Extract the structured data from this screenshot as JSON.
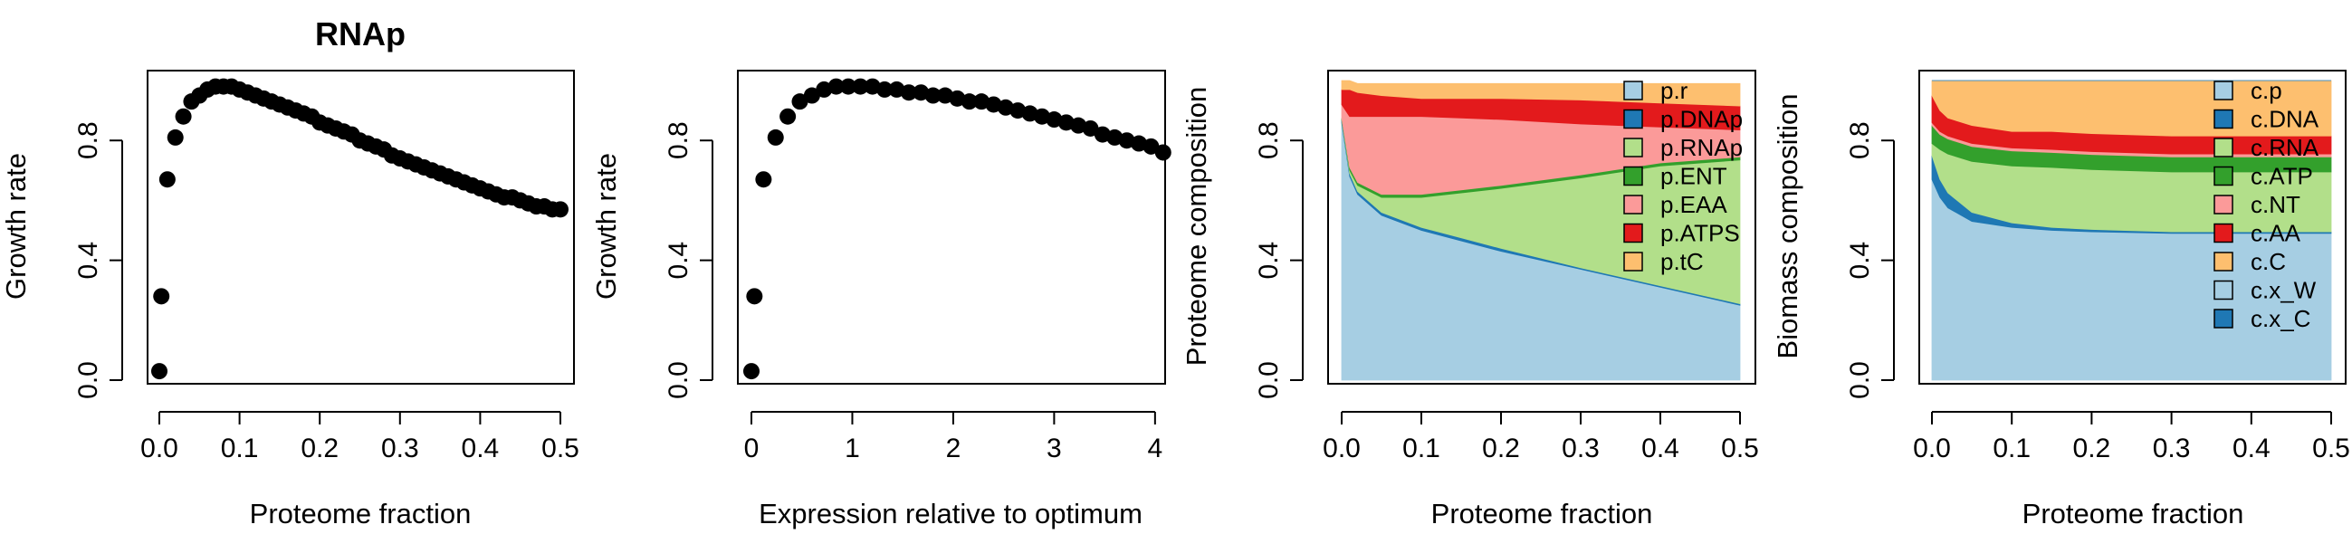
{
  "chart_data": [
    {
      "type": "scatter",
      "title": "RNAp",
      "xlabel": "Proteome fraction",
      "ylabel": "Growth rate",
      "xlim": [
        0,
        0.5
      ],
      "ylim": [
        0,
        1
      ],
      "xticks": [
        0,
        0.1,
        0.2,
        0.3,
        0.4,
        0.5
      ],
      "xtick_labels": [
        "0.0",
        "0.1",
        "0.2",
        "0.3",
        "0.4",
        "0.5"
      ],
      "yticks": [
        0,
        0.4,
        0.8
      ],
      "ytick_labels": [
        "0.0",
        "0.4",
        "0.8"
      ],
      "x": [
        0.0,
        0.0025,
        0.01,
        0.02,
        0.03,
        0.04,
        0.05,
        0.06,
        0.07,
        0.08,
        0.09,
        0.1,
        0.11,
        0.12,
        0.13,
        0.14,
        0.15,
        0.16,
        0.17,
        0.18,
        0.19,
        0.2,
        0.21,
        0.22,
        0.23,
        0.24,
        0.25,
        0.26,
        0.27,
        0.28,
        0.29,
        0.3,
        0.31,
        0.32,
        0.33,
        0.34,
        0.35,
        0.36,
        0.37,
        0.38,
        0.39,
        0.4,
        0.41,
        0.42,
        0.43,
        0.44,
        0.45,
        0.46,
        0.47,
        0.48,
        0.49,
        0.5
      ],
      "y": [
        0.03,
        0.28,
        0.67,
        0.81,
        0.88,
        0.93,
        0.95,
        0.97,
        0.98,
        0.98,
        0.98,
        0.97,
        0.96,
        0.95,
        0.94,
        0.93,
        0.92,
        0.91,
        0.9,
        0.89,
        0.88,
        0.86,
        0.85,
        0.84,
        0.83,
        0.82,
        0.8,
        0.79,
        0.78,
        0.77,
        0.75,
        0.74,
        0.73,
        0.72,
        0.71,
        0.7,
        0.69,
        0.68,
        0.67,
        0.66,
        0.65,
        0.64,
        0.63,
        0.62,
        0.61,
        0.61,
        0.6,
        0.59,
        0.58,
        0.58,
        0.57,
        0.57
      ]
    },
    {
      "type": "scatter",
      "title": "",
      "xlabel": "Expression relative to optimum",
      "ylabel": "Growth rate",
      "xlim": [
        0,
        4.1
      ],
      "ylim": [
        0,
        1
      ],
      "xticks": [
        0,
        1,
        2,
        3,
        4
      ],
      "xtick_labels": [
        "0",
        "1",
        "2",
        "3",
        "4"
      ],
      "yticks": [
        0,
        0.4,
        0.8
      ],
      "ytick_labels": [
        "0.0",
        "0.4",
        "0.8"
      ],
      "x": [
        0.0,
        0.03,
        0.12,
        0.24,
        0.36,
        0.48,
        0.6,
        0.72,
        0.84,
        0.96,
        1.08,
        1.2,
        1.32,
        1.44,
        1.56,
        1.68,
        1.8,
        1.92,
        2.04,
        2.16,
        2.28,
        2.4,
        2.52,
        2.64,
        2.76,
        2.88,
        3.0,
        3.12,
        3.24,
        3.36,
        3.48,
        3.6,
        3.72,
        3.84,
        3.96,
        4.08
      ],
      "y": [
        0.03,
        0.28,
        0.67,
        0.81,
        0.88,
        0.93,
        0.95,
        0.97,
        0.98,
        0.98,
        0.98,
        0.98,
        0.97,
        0.97,
        0.96,
        0.96,
        0.95,
        0.95,
        0.94,
        0.93,
        0.93,
        0.92,
        0.91,
        0.9,
        0.89,
        0.88,
        0.87,
        0.86,
        0.85,
        0.84,
        0.82,
        0.81,
        0.8,
        0.79,
        0.78,
        0.76
      ]
    },
    {
      "type": "area",
      "stacked": true,
      "title": "",
      "xlabel": "Proteome fraction",
      "ylabel": "Proteome composition",
      "xlim": [
        0,
        0.5
      ],
      "ylim": [
        0,
        1
      ],
      "xticks": [
        0,
        0.1,
        0.2,
        0.3,
        0.4,
        0.5
      ],
      "xtick_labels": [
        "0.0",
        "0.1",
        "0.2",
        "0.3",
        "0.4",
        "0.5"
      ],
      "yticks": [
        0,
        0.4,
        0.8
      ],
      "ytick_labels": [
        "0.0",
        "0.4",
        "0.8"
      ],
      "legend_position": "top-right",
      "x": [
        0.0,
        0.01,
        0.02,
        0.05,
        0.1,
        0.15,
        0.2,
        0.3,
        0.4,
        0.5
      ],
      "series": [
        {
          "name": "p.r",
          "color": "#A6CEE3",
          "values": [
            0.86,
            0.68,
            0.62,
            0.55,
            0.5,
            0.465,
            0.43,
            0.37,
            0.31,
            0.25
          ]
        },
        {
          "name": "p.DNAp",
          "color": "#1F78B4",
          "values": [
            0.01,
            0.01,
            0.01,
            0.01,
            0.01,
            0.01,
            0.01,
            0.005,
            0.005,
            0.005
          ]
        },
        {
          "name": "p.RNAp",
          "color": "#B2DF8A",
          "values": [
            0.0,
            0.01,
            0.02,
            0.05,
            0.1,
            0.15,
            0.2,
            0.3,
            0.4,
            0.48
          ]
        },
        {
          "name": "p.ENT",
          "color": "#33A02C",
          "values": [
            0.005,
            0.01,
            0.01,
            0.01,
            0.01,
            0.01,
            0.01,
            0.01,
            0.01,
            0.01
          ]
        },
        {
          "name": "p.EAA",
          "color": "#FB9A99",
          "values": [
            0.045,
            0.17,
            0.22,
            0.26,
            0.26,
            0.24,
            0.22,
            0.17,
            0.12,
            0.09
          ]
        },
        {
          "name": "p.ATPS",
          "color": "#E31A1C",
          "values": [
            0.05,
            0.09,
            0.08,
            0.07,
            0.06,
            0.065,
            0.07,
            0.08,
            0.08,
            0.08
          ]
        },
        {
          "name": "p.tC",
          "color": "#FDBF6F",
          "values": [
            0.03,
            0.03,
            0.03,
            0.04,
            0.05,
            0.05,
            0.05,
            0.055,
            0.065,
            0.075
          ]
        }
      ]
    },
    {
      "type": "area",
      "stacked": true,
      "title": "",
      "xlabel": "Proteome fraction",
      "ylabel": "Biomass composition",
      "xlim": [
        0,
        0.5
      ],
      "ylim": [
        0,
        1
      ],
      "xticks": [
        0,
        0.1,
        0.2,
        0.3,
        0.4,
        0.5
      ],
      "xtick_labels": [
        "0.0",
        "0.1",
        "0.2",
        "0.3",
        "0.4",
        "0.5"
      ],
      "yticks": [
        0,
        0.4,
        0.8
      ],
      "ytick_labels": [
        "0.0",
        "0.4",
        "0.8"
      ],
      "legend_position": "top-right",
      "x": [
        0.0,
        0.01,
        0.02,
        0.05,
        0.1,
        0.15,
        0.2,
        0.3,
        0.4,
        0.5
      ],
      "series": [
        {
          "name": "c.p",
          "color": "#A6CEE3",
          "values": [
            0.67,
            0.61,
            0.575,
            0.53,
            0.51,
            0.5,
            0.495,
            0.49,
            0.49,
            0.49
          ]
        },
        {
          "name": "c.DNA",
          "color": "#1F78B4",
          "values": [
            0.08,
            0.06,
            0.05,
            0.03,
            0.015,
            0.01,
            0.008,
            0.005,
            0.005,
            0.005
          ]
        },
        {
          "name": "c.RNA",
          "color": "#B2DF8A",
          "values": [
            0.04,
            0.1,
            0.13,
            0.17,
            0.19,
            0.2,
            0.2,
            0.2,
            0.2,
            0.2
          ]
        },
        {
          "name": "c.ATP",
          "color": "#33A02C",
          "values": [
            0.06,
            0.05,
            0.05,
            0.05,
            0.05,
            0.05,
            0.05,
            0.05,
            0.05,
            0.05
          ]
        },
        {
          "name": "c.NT",
          "color": "#FB9A99",
          "values": [
            0.01,
            0.01,
            0.01,
            0.01,
            0.01,
            0.01,
            0.01,
            0.01,
            0.01,
            0.01
          ]
        },
        {
          "name": "c.AA",
          "color": "#E31A1C",
          "values": [
            0.09,
            0.07,
            0.06,
            0.06,
            0.055,
            0.06,
            0.06,
            0.06,
            0.06,
            0.06
          ]
        },
        {
          "name": "c.C",
          "color": "#FDBF6F",
          "values": [
            0.05,
            0.1,
            0.125,
            0.15,
            0.17,
            0.17,
            0.177,
            0.185,
            0.185,
            0.185
          ]
        },
        {
          "name": "c.x_W",
          "color": "#A6CEE3",
          "values": [
            0,
            0,
            0,
            0,
            0,
            0,
            0,
            0,
            0,
            0
          ]
        },
        {
          "name": "c.x_C",
          "color": "#1F78B4",
          "values": [
            0,
            0,
            0,
            0,
            0,
            0,
            0,
            0,
            0,
            0
          ]
        }
      ]
    }
  ]
}
